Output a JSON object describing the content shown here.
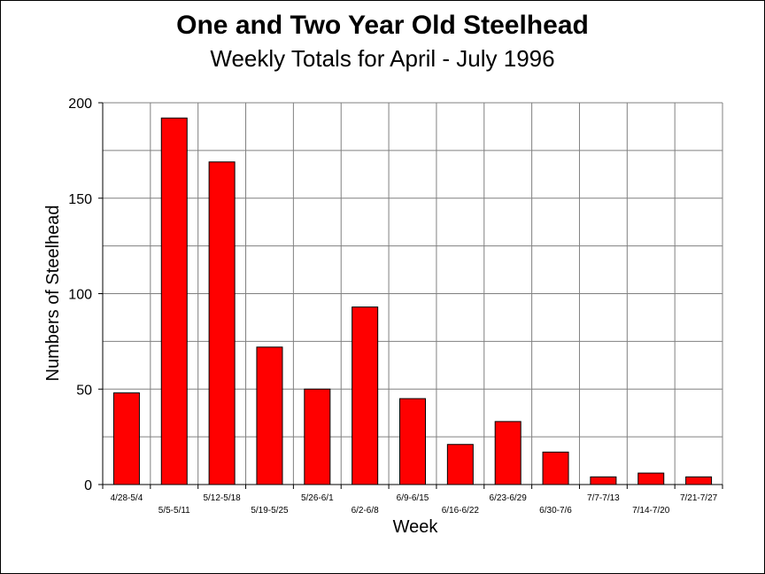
{
  "chart_data": {
    "type": "bar",
    "title": "One and Two Year Old Steelhead",
    "subtitle": "Weekly Totals for April - July 1996",
    "xlabel": "Week",
    "ylabel": "Numbers of Steelhead",
    "categories": [
      "4/28-5/4",
      "5/5-5/11",
      "5/12-5/18",
      "5/19-5/25",
      "5/26-6/1",
      "6/2-6/8",
      "6/9-6/15",
      "6/16-6/22",
      "6/23-6/29",
      "6/30-7/6",
      "7/7-7/13",
      "7/14-7/20",
      "7/21-7/27"
    ],
    "values": [
      48,
      192,
      169,
      72,
      50,
      93,
      45,
      21,
      33,
      17,
      4,
      6,
      4
    ],
    "ylim": [
      0,
      200
    ],
    "yticks": [
      0,
      50,
      100,
      150,
      200
    ],
    "grid": true,
    "bar_color": "#ff0000",
    "legend": "none"
  }
}
